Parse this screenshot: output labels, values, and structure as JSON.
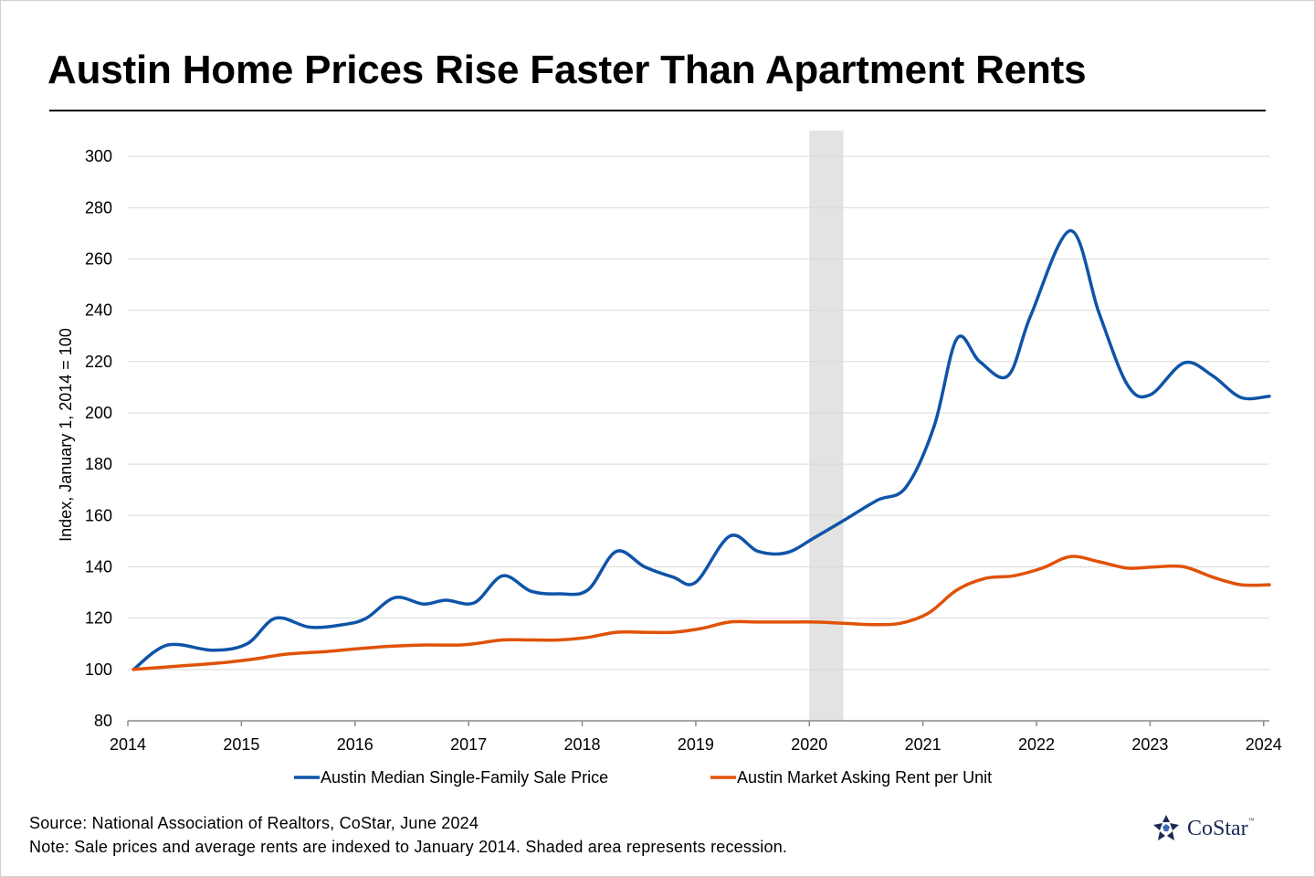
{
  "title": "Austin Home Prices Rise Faster Than Apartment Rents",
  "footer": {
    "source": "Source: National Association of Realtors, CoStar, June 2024",
    "note": "Note: Sale prices and average rents are indexed to January 2014. Shaded area represents recession."
  },
  "brand": {
    "name": "CoStar",
    "tm": "™"
  },
  "colors": {
    "series1": "#0e54a8",
    "series2": "#e05206",
    "recession": "#e3e3e3",
    "grid": "#d9d9d9"
  },
  "chart_data": {
    "type": "line",
    "title": "Austin Home Prices Rise Faster Than Apartment Rents",
    "xlabel": "",
    "ylabel": "Index, January 1, 2014 = 100",
    "xlim": [
      2014,
      2024.05
    ],
    "ylim": [
      80,
      310
    ],
    "yticks": [
      80,
      100,
      120,
      140,
      160,
      180,
      200,
      220,
      240,
      260,
      280,
      300
    ],
    "xticks": [
      2014,
      2015,
      2016,
      2017,
      2018,
      2019,
      2020,
      2021,
      2022,
      2023,
      2024
    ],
    "grid": true,
    "legend": "bottom",
    "recession": [
      2020.0,
      2020.3
    ],
    "series": [
      {
        "name": "Austin Median Single-Family Sale Price",
        "x": [
          2014.05,
          2014.35,
          2014.75,
          2015.05,
          2015.3,
          2015.6,
          2015.9,
          2016.1,
          2016.35,
          2016.6,
          2016.8,
          2017.05,
          2017.3,
          2017.55,
          2017.8,
          2018.05,
          2018.3,
          2018.55,
          2018.8,
          2019.0,
          2019.3,
          2019.55,
          2019.8,
          2020.05,
          2020.3,
          2020.6,
          2020.85,
          2021.1,
          2021.3,
          2021.5,
          2021.75,
          2021.95,
          2022.3,
          2022.55,
          2022.8,
          2023.0,
          2023.3,
          2023.55,
          2023.8,
          2024.05
        ],
        "values": [
          100,
          109.5,
          107.5,
          110,
          120,
          116.5,
          117.5,
          120,
          128,
          125.5,
          127,
          126,
          136.5,
          130.5,
          129.5,
          131,
          146,
          140,
          136,
          134,
          152,
          146,
          145.5,
          151.5,
          158,
          166,
          171,
          195,
          229,
          220,
          214.5,
          238,
          271,
          239,
          211,
          207,
          219.5,
          214.5,
          206,
          206.5
        ]
      },
      {
        "name": "Austin Market Asking Rent per Unit",
        "x": [
          2014.05,
          2014.5,
          2014.8,
          2015.1,
          2015.4,
          2015.75,
          2016.0,
          2016.3,
          2016.6,
          2016.9,
          2017.05,
          2017.3,
          2017.55,
          2017.8,
          2018.05,
          2018.3,
          2018.55,
          2018.8,
          2019.05,
          2019.3,
          2019.55,
          2019.8,
          2020.05,
          2020.3,
          2020.55,
          2020.8,
          2021.05,
          2021.3,
          2021.55,
          2021.8,
          2022.05,
          2022.3,
          2022.55,
          2022.8,
          2023.05,
          2023.3,
          2023.55,
          2023.8,
          2024.05
        ],
        "values": [
          100,
          101.5,
          102.5,
          104,
          106,
          107,
          108,
          109,
          109.5,
          109.5,
          110,
          111.5,
          111.5,
          111.5,
          112.5,
          114.5,
          114.5,
          114.5,
          116,
          118.5,
          118.5,
          118.5,
          118.5,
          118,
          117.5,
          118,
          122,
          131,
          135.5,
          136.5,
          139.5,
          144,
          142,
          139.5,
          140,
          140,
          136,
          133,
          133
        ]
      }
    ]
  }
}
